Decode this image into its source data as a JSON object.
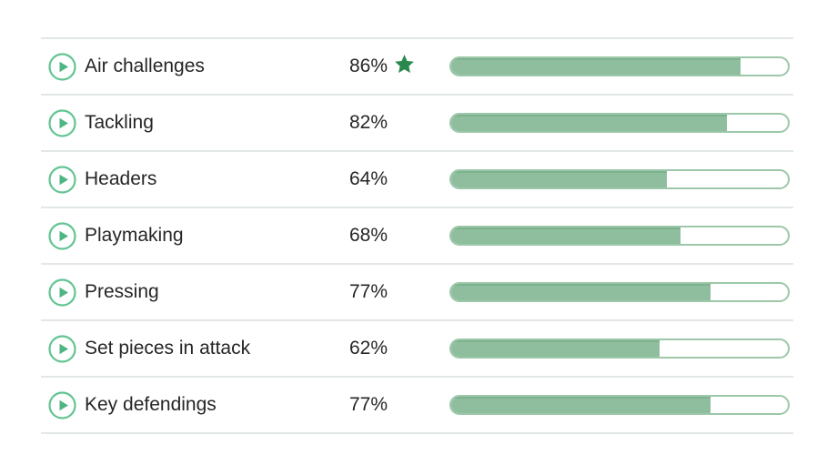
{
  "colors": {
    "bg": "#ffffff",
    "text": "#262626",
    "divider": "#e2e7e8",
    "icon-ring": "#63c493",
    "icon-tri": "#4fb583",
    "bar-border": "#9cc7a9",
    "bar-fill": "#8fbe9e",
    "bar-fill-edge": "#7eb28e",
    "star": "#27894c"
  },
  "skills": {
    "rows": [
      {
        "label": "Air challenges",
        "percent": "86%",
        "value": 86,
        "starred": true
      },
      {
        "label": "Tackling",
        "percent": "82%",
        "value": 82,
        "starred": false
      },
      {
        "label": "Headers",
        "percent": "64%",
        "value": 64,
        "starred": false
      },
      {
        "label": "Playmaking",
        "percent": "68%",
        "value": 68,
        "starred": false
      },
      {
        "label": "Pressing",
        "percent": "77%",
        "value": 77,
        "starred": false
      },
      {
        "label": "Set pieces in attack",
        "percent": "62%",
        "value": 62,
        "starred": false
      },
      {
        "label": "Key defendings",
        "percent": "77%",
        "value": 77,
        "starred": false
      }
    ]
  },
  "chart_data": {
    "type": "bar",
    "categories": [
      "Air challenges",
      "Tackling",
      "Headers",
      "Playmaking",
      "Pressing",
      "Set pieces in attack",
      "Key defendings"
    ],
    "values": [
      86,
      82,
      64,
      68,
      77,
      62,
      77
    ],
    "title": "",
    "xlabel": "",
    "ylabel": "",
    "ylim": [
      0,
      100
    ],
    "value_format": "percent",
    "starred_category": "Air challenges"
  }
}
